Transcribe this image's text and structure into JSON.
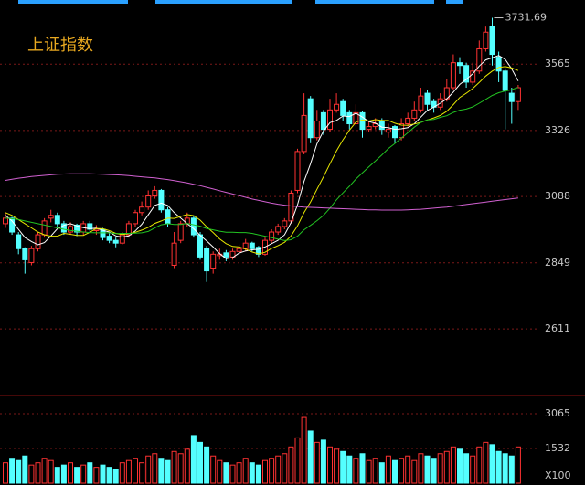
{
  "chart_data": {
    "type": "candlestick",
    "title": "上证指数",
    "peak_label": "3731.69",
    "up_color": "#ff3232",
    "down_color": "#54ffff",
    "ylim": [
      2371,
      3796
    ],
    "yticks": [
      2611,
      2849,
      3088,
      3326,
      3565
    ],
    "grid": true,
    "ohlc": [
      [
        2990,
        3030,
        2975,
        3010
      ],
      [
        3010,
        3015,
        2950,
        2960
      ],
      [
        2950,
        2960,
        2880,
        2900
      ],
      [
        2900,
        2905,
        2810,
        2860
      ],
      [
        2850,
        2910,
        2840,
        2900
      ],
      [
        2900,
        2960,
        2890,
        2950
      ],
      [
        2950,
        3010,
        2940,
        3000
      ],
      [
        3010,
        3040,
        2995,
        3020
      ],
      [
        3020,
        3030,
        2980,
        2990
      ],
      [
        2990,
        3000,
        2950,
        2960
      ],
      [
        2960,
        2995,
        2950,
        2980
      ],
      [
        2985,
        2990,
        2945,
        2960
      ],
      [
        2960,
        3000,
        2950,
        2990
      ],
      [
        2990,
        3000,
        2960,
        2970
      ],
      [
        2965,
        2985,
        2950,
        2970
      ],
      [
        2970,
        2975,
        2930,
        2940
      ],
      [
        2945,
        2955,
        2920,
        2930
      ],
      [
        2930,
        2940,
        2905,
        2920
      ],
      [
        2920,
        2960,
        2915,
        2950
      ],
      [
        2950,
        3000,
        2940,
        2990
      ],
      [
        2990,
        3040,
        2980,
        3030
      ],
      [
        3030,
        3070,
        3020,
        3050
      ],
      [
        3050,
        3110,
        3040,
        3090
      ],
      [
        3090,
        3125,
        3080,
        3110
      ],
      [
        3110,
        3115,
        3030,
        3040
      ],
      [
        3040,
        3050,
        2980,
        2990
      ],
      [
        2840,
        2960,
        2830,
        2920
      ],
      [
        2930,
        3000,
        2920,
        2990
      ],
      [
        2990,
        3030,
        2980,
        3010
      ],
      [
        3010,
        3020,
        2940,
        2950
      ],
      [
        2950,
        2960,
        2860,
        2870
      ],
      [
        2900,
        2910,
        2780,
        2820
      ],
      [
        2830,
        2890,
        2810,
        2880
      ],
      [
        2875,
        2900,
        2860,
        2880
      ],
      [
        2885,
        2895,
        2855,
        2870
      ],
      [
        2870,
        2900,
        2860,
        2890
      ],
      [
        2890,
        2915,
        2880,
        2900
      ],
      [
        2900,
        2935,
        2890,
        2920
      ],
      [
        2920,
        2925,
        2890,
        2900
      ],
      [
        2905,
        2910,
        2870,
        2880
      ],
      [
        2880,
        2940,
        2875,
        2930
      ],
      [
        2930,
        2970,
        2920,
        2960
      ],
      [
        2960,
        2990,
        2950,
        2980
      ],
      [
        2980,
        3010,
        2970,
        3000
      ],
      [
        3000,
        3110,
        2990,
        3100
      ],
      [
        3110,
        3260,
        3100,
        3250
      ],
      [
        3250,
        3460,
        3240,
        3380
      ],
      [
        3440,
        3450,
        3280,
        3300
      ],
      [
        3300,
        3400,
        3290,
        3360
      ],
      [
        3390,
        3400,
        3310,
        3330
      ],
      [
        3330,
        3440,
        3320,
        3400
      ],
      [
        3400,
        3460,
        3390,
        3420
      ],
      [
        3430,
        3440,
        3360,
        3380
      ],
      [
        3390,
        3400,
        3330,
        3350
      ],
      [
        3350,
        3420,
        3340,
        3390
      ],
      [
        3390,
        3395,
        3300,
        3330
      ],
      [
        3330,
        3360,
        3320,
        3340
      ],
      [
        3340,
        3370,
        3330,
        3350
      ],
      [
        3360,
        3370,
        3310,
        3330
      ],
      [
        3320,
        3350,
        3300,
        3330
      ],
      [
        3340,
        3345,
        3280,
        3300
      ],
      [
        3300,
        3370,
        3290,
        3350
      ],
      [
        3350,
        3390,
        3340,
        3370
      ],
      [
        3370,
        3430,
        3360,
        3400
      ],
      [
        3400,
        3480,
        3390,
        3450
      ],
      [
        3460,
        3470,
        3400,
        3420
      ],
      [
        3430,
        3440,
        3390,
        3410
      ],
      [
        3410,
        3460,
        3400,
        3440
      ],
      [
        3440,
        3510,
        3430,
        3480
      ],
      [
        3480,
        3600,
        3470,
        3570
      ],
      [
        3570,
        3590,
        3530,
        3560
      ],
      [
        3560,
        3570,
        3480,
        3500
      ],
      [
        3500,
        3570,
        3490,
        3540
      ],
      [
        3540,
        3650,
        3530,
        3620
      ],
      [
        3620,
        3700,
        3610,
        3680
      ],
      [
        3700,
        3731.69,
        3560,
        3600
      ],
      [
        3590,
        3610,
        3500,
        3540
      ],
      [
        3540,
        3550,
        3330,
        3470
      ],
      [
        3460,
        3480,
        3350,
        3430
      ],
      [
        3430,
        3490,
        3400,
        3480
      ]
    ],
    "ma": [
      {
        "color": "#ffffff",
        "values": [
          3020,
          3000,
          2970,
          2940,
          2926,
          2914,
          2922,
          2946,
          2972,
          2984,
          2990,
          2982,
          2976,
          2972,
          2974,
          2966,
          2960,
          2946,
          2942,
          2946,
          2964,
          2988,
          3022,
          3056,
          3064,
          3056,
          3030,
          3010,
          2990,
          2972,
          2948,
          2928,
          2906,
          2882,
          2864,
          2868,
          2884,
          2892,
          2896,
          2898,
          2906,
          2918,
          2930,
          2950,
          2994,
          3058,
          3142,
          3206,
          3278,
          3324,
          3354,
          3362,
          3378,
          3376,
          3388,
          3374,
          3358,
          3352,
          3338,
          3336,
          3330,
          3332,
          3336,
          3350,
          3374,
          3398,
          3410,
          3424,
          3440,
          3464,
          3492,
          3510,
          3530,
          3558,
          3580,
          3588,
          3596,
          3582,
          3548,
          3504
        ]
      },
      {
        "color": "#e8e800",
        "values": [
          3030,
          3020,
          3005,
          2990,
          2975,
          2960,
          2950,
          2945,
          2945,
          2955,
          2952,
          2948,
          2948,
          2959,
          2973,
          2972,
          2965,
          2955,
          2951,
          2954,
          2959,
          2967,
          2977,
          2991,
          3000,
          3010,
          3009,
          3016,
          3023,
          3019,
          3003,
          2979,
          2958,
          2935,
          2918,
          2908,
          2906,
          2899,
          2888,
          2881,
          2887,
          2901,
          2911,
          2923,
          2946,
          2982,
          3030,
          3068,
          3114,
          3159,
          3206,
          3252,
          3292,
          3327,
          3356,
          3364,
          3360,
          3365,
          3362,
          3362,
          3352,
          3345,
          3344,
          3349,
          3355,
          3364,
          3371,
          3380,
          3395,
          3419,
          3445,
          3460,
          3477,
          3499,
          3522,
          3540,
          3553,
          3556,
          3551,
          3542
        ]
      },
      {
        "color": "#22c322",
        "values": [
          3010,
          3008,
          3005,
          3000,
          2995,
          2990,
          2985,
          2980,
          2975,
          2970,
          2966,
          2963,
          2960,
          2958,
          2957,
          2957,
          2957,
          2954,
          2955,
          2955,
          2956,
          2957,
          2962,
          2975,
          2986,
          2990,
          2987,
          2987,
          2991,
          2986,
          2981,
          2973,
          2968,
          2963,
          2959,
          2959,
          2958,
          2958,
          2955,
          2950,
          2945,
          2940,
          2934,
          2929,
          2932,
          2945,
          2968,
          2984,
          3001,
          3020,
          3046,
          3076,
          3101,
          3125,
          3151,
          3173,
          3195,
          3216,
          3238,
          3261,
          3279,
          3298,
          3318,
          3338,
          3355,
          3364,
          3366,
          3373,
          3379,
          3391,
          3399,
          3403,
          3411,
          3424,
          3438,
          3452,
          3462,
          3468,
          3473,
          3481
        ]
      },
      {
        "color": "#d060d0",
        "values": [
          3146,
          3150,
          3154,
          3157,
          3160,
          3162,
          3164,
          3166,
          3168,
          3169,
          3170,
          3170,
          3170,
          3170,
          3169,
          3168,
          3167,
          3166,
          3165,
          3163,
          3161,
          3159,
          3157,
          3155,
          3152,
          3149,
          3145,
          3141,
          3137,
          3132,
          3127,
          3121,
          3115,
          3109,
          3103,
          3097,
          3091,
          3085,
          3079,
          3074,
          3069,
          3064,
          3060,
          3057,
          3054,
          3052,
          3050,
          3049,
          3048,
          3047,
          3046,
          3045,
          3044,
          3043,
          3042,
          3041,
          3040,
          3040,
          3039,
          3039,
          3039,
          3039,
          3040,
          3041,
          3042,
          3044,
          3046,
          3048,
          3050,
          3053,
          3056,
          3059,
          3062,
          3065,
          3068,
          3071,
          3074,
          3077,
          3080,
          3083
        ]
      }
    ],
    "volume": [
      900,
      1100,
      1000,
      1200,
      800,
      900,
      1100,
      1000,
      700,
      800,
      900,
      700,
      800,
      900,
      700,
      800,
      700,
      600,
      900,
      1000,
      1100,
      900,
      1200,
      1300,
      1100,
      1000,
      1400,
      1300,
      1500,
      2100,
      1800,
      1600,
      1200,
      1000,
      900,
      800,
      900,
      1100,
      900,
      800,
      1000,
      1100,
      1200,
      1300,
      1600,
      2000,
      2900,
      2300,
      1800,
      1900,
      1600,
      1500,
      1400,
      1200,
      1100,
      1300,
      1000,
      1100,
      900,
      1200,
      1000,
      1100,
      1200,
      1000,
      1300,
      1200,
      1100,
      1300,
      1400,
      1600,
      1500,
      1300,
      1200,
      1600,
      1800,
      1700,
      1400,
      1300,
      1200,
      1600
    ],
    "volume_ylim": [
      0,
      3790
    ],
    "volume_yticks": [
      1532,
      3065
    ],
    "volume_unit": "X100"
  }
}
